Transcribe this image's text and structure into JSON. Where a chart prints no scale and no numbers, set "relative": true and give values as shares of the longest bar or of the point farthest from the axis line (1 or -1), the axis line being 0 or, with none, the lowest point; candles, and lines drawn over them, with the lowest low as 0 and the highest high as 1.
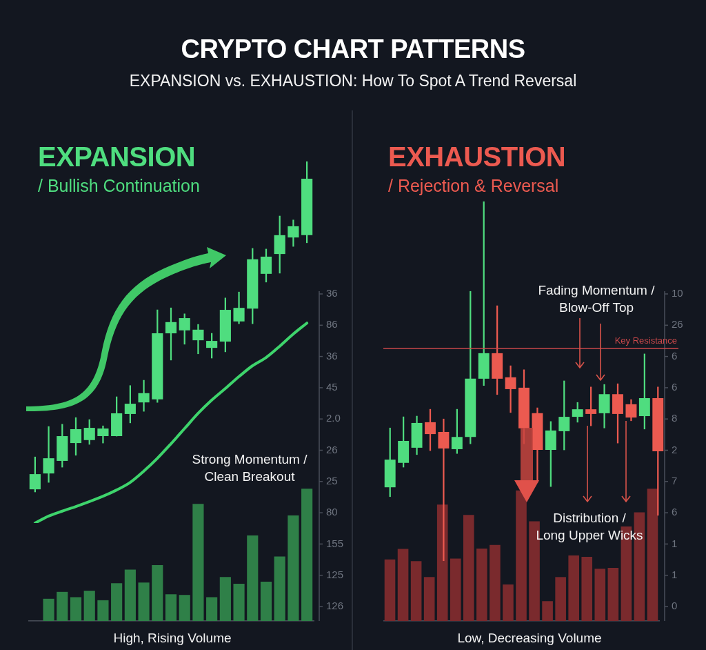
{
  "chart_data": [
    {
      "type": "other",
      "title": "CRYPTO CHART PATTERNS",
      "subtitle": "EXPANSION vs. EXHAUSTION: How To Spot A Trend Reversal"
    },
    {
      "type": "candlestick",
      "title": "EXPANSION",
      "subtitle": "/ Bullish Continuation",
      "relative": true,
      "categories": [
        null,
        null,
        null,
        null,
        null,
        null,
        null,
        null,
        null,
        null,
        null,
        null,
        null,
        null,
        null,
        null,
        null,
        null,
        null,
        null,
        null
      ],
      "ohlc": [
        [
          0.008,
          0.106,
          0,
          0.054
        ],
        [
          0.056,
          0.198,
          0.029,
          0.102
        ],
        [
          0.094,
          0.205,
          0.075,
          0.169
        ],
        [
          0.148,
          0.225,
          0.111,
          0.19
        ],
        [
          0.157,
          0.219,
          0.144,
          0.194
        ],
        [
          0.169,
          0.2,
          0.148,
          0.192
        ],
        [
          0.169,
          0.288,
          0.169,
          0.238
        ],
        [
          0.236,
          0.322,
          0.209,
          0.267
        ],
        [
          0.271,
          0.338,
          0.244,
          0.299
        ],
        [
          0.28,
          0.551,
          0.271,
          0.48
        ],
        [
          0.48,
          0.557,
          0.399,
          0.514
        ],
        [
          0.489,
          0.539,
          0.447,
          0.526
        ],
        [
          0.459,
          0.507,
          0.418,
          0.491
        ],
        [
          0.436,
          0.48,
          0.405,
          0.457
        ],
        [
          0.455,
          0.587,
          0.424,
          0.551
        ],
        [
          0.516,
          0.605,
          0.509,
          0.557
        ],
        [
          0.555,
          0.737,
          0.509,
          0.704
        ],
        [
          0.66,
          0.735,
          0.635,
          0.712
        ],
        [
          0.72,
          0.835,
          0.662,
          0.777
        ],
        [
          0.77,
          0.823,
          0.743,
          0.804
        ],
        [
          0.777,
          1,
          0.754,
          0.948
        ]
      ],
      "colors": [
        "#4fdd7f",
        "#4fdd7f",
        "#4fdd7f",
        "#4fdd7f",
        "#4fdd7f",
        "#4fdd7f",
        "#4fdd7f",
        "#4fdd7f",
        "#4fdd7f",
        "#4fdd7f",
        "#4fdd7f",
        "#4fdd7f",
        "#4fdd7f",
        "#4fdd7f",
        "#4fdd7f",
        "#4fdd7f",
        "#4fdd7f",
        "#4fdd7f",
        "#4fdd7f",
        "#4fdd7f",
        "#4fdd7f"
      ],
      "series": [
        {
          "type": "line",
          "color": "#3ed46c",
          "values": [
            -0.094,
            -0.073,
            -0.058,
            -0.044,
            -0.029,
            -0.013,
            0.006,
            0.029,
            0.063,
            0.102,
            0.146,
            0.192,
            0.238,
            0.278,
            0.313,
            0.349,
            0.382,
            0.407,
            0.441,
            0.478,
            0.511
          ]
        }
      ],
      "marker": "none",
      "annotations": [
        "Strong Momentum /\nClean Breakout"
      ]
    },
    {
      "type": "bar",
      "relative": true,
      "xlabel": "High, Rising Volume",
      "color": "#2f8048",
      "categories": [
        null,
        null,
        null,
        null,
        null,
        null,
        null,
        null,
        null,
        null,
        null,
        null,
        null,
        null,
        null,
        null,
        null,
        null,
        null,
        null,
        null
      ],
      "values": [
        null,
        0.168,
        0.22,
        0.18,
        0.229,
        0.157,
        0.286,
        0.389,
        0.291,
        0.422,
        0.202,
        0.197,
        0.885,
        0.18,
        0.333,
        0.281,
        0.647,
        0.297,
        0.487,
        0.798,
        1
      ],
      "annotations": [
        "36",
        "86",
        "36",
        "45",
        "2.0",
        "26",
        "25",
        "80",
        "155",
        "125",
        "126"
      ]
    },
    {
      "type": "candlestick",
      "title": "EXHAUSTION",
      "subtitle": "/ Rejection & Reversal",
      "relative": true,
      "categories": [
        null,
        null,
        null,
        null,
        null,
        null,
        null,
        null,
        null,
        null,
        null,
        null,
        null,
        null,
        null,
        null,
        null,
        null,
        null,
        null,
        null
      ],
      "ohlc": [
        [
          0.205,
          0.37,
          0.179,
          0.282
        ],
        [
          0.273,
          0.401,
          0.261,
          0.334
        ],
        [
          0.315,
          0.403,
          0.296,
          0.384
        ],
        [
          0.386,
          0.422,
          0.307,
          0.353
        ],
        [
          0.359,
          0.395,
          0,
          0.313
        ],
        [
          0.311,
          0.422,
          0.299,
          0.345
        ],
        [
          0.345,
          0.75,
          0.326,
          0.507
        ],
        [
          0.507,
          1,
          0.488,
          0.578
        ],
        [
          0.578,
          0.71,
          0.463,
          0.507
        ],
        [
          0.511,
          0.543,
          0.413,
          0.478
        ],
        [
          0.482,
          0.532,
          0.326,
          0.369
        ],
        [
          0.411,
          0.426,
          0.219,
          0.309
        ],
        [
          0.309,
          0.388,
          0.207,
          0.363
        ],
        [
          0.361,
          0.501,
          0.309,
          0.401
        ],
        [
          0.401,
          0.441,
          0.386,
          0.422
        ],
        [
          0.422,
          0.484,
          0.376,
          0.409
        ],
        [
          0.411,
          0.491,
          0.37,
          0.464
        ],
        [
          0.464,
          0.493,
          0.328,
          0.409
        ],
        [
          0.436,
          0.449,
          0.39,
          0.399
        ],
        [
          0.403,
          0.576,
          0.367,
          0.453
        ],
        [
          0.453,
          0.484,
          0.127,
          0.305
        ]
      ],
      "colors": [
        "#4fdd7f",
        "#4fdd7f",
        "#4fdd7f",
        "#ec5a50",
        "#ec5a50",
        "#4fdd7f",
        "#4fdd7f",
        "#4fdd7f",
        "#ec5a50",
        "#ec5a50",
        "#ec5a50",
        "#ec5a50",
        "#4fdd7f",
        "#4fdd7f",
        "#4fdd7f",
        "#ec5a50",
        "#4fdd7f",
        "#ec5a50",
        "#ec5a50",
        "#4fdd7f",
        "#ec5a50"
      ],
      "ref_lines": [
        {
          "axis": "y",
          "value": 0.591,
          "label": "Key Resistance",
          "color": "#c9484a"
        }
      ],
      "annotations": [
        "Fading Momentum /\nBlow-Off Top",
        "Distribution /\nLong Upper Wicks"
      ]
    },
    {
      "type": "bar",
      "relative": true,
      "xlabel": "Low, Decreasing Volume",
      "color": "#7a2a2d",
      "categories": [
        null,
        null,
        null,
        null,
        null,
        null,
        null,
        null,
        null,
        null,
        null,
        null,
        null,
        null,
        null,
        null,
        null,
        null,
        null,
        null,
        null
      ],
      "values": [
        0.465,
        0.545,
        0.452,
        0.332,
        0.88,
        0.472,
        0.801,
        0.548,
        0.575,
        0.276,
        0.987,
        0.754,
        0.15,
        0.332,
        0.495,
        0.485,
        0.395,
        0.402,
        0.714,
        0.821,
        1
      ],
      "annotations": [
        "10",
        "26",
        "6",
        "6",
        "8",
        "2",
        "7",
        "6",
        "1",
        "1",
        "0"
      ]
    }
  ]
}
